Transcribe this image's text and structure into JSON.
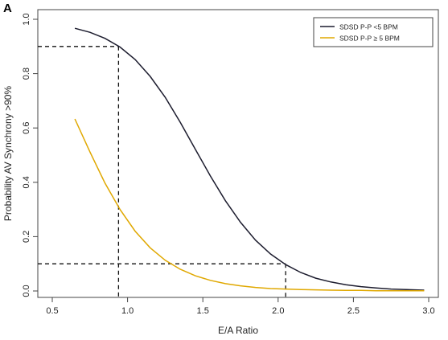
{
  "panel_label": "A",
  "chart_data": {
    "type": "line",
    "title": "",
    "xlabel": "E/A Ratio",
    "ylabel": "Probability AV Synchrony >90%",
    "xlim": [
      0.5,
      3.0
    ],
    "ylim": [
      0.0,
      1.0
    ],
    "xticks": [
      0.5,
      1.0,
      1.5,
      2.0,
      2.5,
      3.0
    ],
    "xtick_labels": [
      "0.5",
      "1.0",
      "1.5",
      "2.0",
      "2.5",
      "3.0"
    ],
    "yticks": [
      0.0,
      0.2,
      0.4,
      0.6,
      0.8,
      1.0
    ],
    "ytick_labels": [
      "0.0",
      "0.2",
      "0.4",
      "0.6",
      "0.8",
      "1.0"
    ],
    "grid": false,
    "legend_position": "top-right",
    "series": [
      {
        "name": "SDSD P-P <5 BPM",
        "color": "#1c1c2e",
        "x": [
          0.65,
          0.75,
          0.85,
          0.95,
          1.05,
          1.15,
          1.25,
          1.35,
          1.45,
          1.55,
          1.65,
          1.75,
          1.85,
          1.95,
          2.05,
          2.15,
          2.25,
          2.35,
          2.45,
          2.55,
          2.65,
          2.75,
          2.85,
          2.97
        ],
        "values": [
          0.967,
          0.952,
          0.93,
          0.898,
          0.852,
          0.79,
          0.713,
          0.621,
          0.522,
          0.423,
          0.332,
          0.253,
          0.187,
          0.136,
          0.097,
          0.068,
          0.047,
          0.033,
          0.023,
          0.016,
          0.011,
          0.007,
          0.005,
          0.003
        ]
      },
      {
        "name": "SDSD P-P ≥ 5 BPM",
        "color": "#e0a800",
        "x": [
          0.65,
          0.75,
          0.85,
          0.95,
          1.05,
          1.15,
          1.25,
          1.35,
          1.45,
          1.55,
          1.65,
          1.75,
          1.85,
          1.95,
          2.05,
          2.15,
          2.25,
          2.35,
          2.45,
          2.55,
          2.65,
          2.75,
          2.85,
          2.97
        ],
        "values": [
          0.633,
          0.512,
          0.397,
          0.3,
          0.22,
          0.159,
          0.113,
          0.08,
          0.056,
          0.039,
          0.027,
          0.019,
          0.013,
          0.009,
          0.007,
          0.005,
          0.004,
          0.003,
          0.002,
          0.002,
          0.001,
          0.001,
          0.001,
          0.001
        ]
      }
    ],
    "reference_lines": [
      {
        "x": 0.94,
        "y": 0.9
      },
      {
        "x": 2.05,
        "y": 0.1
      }
    ]
  }
}
